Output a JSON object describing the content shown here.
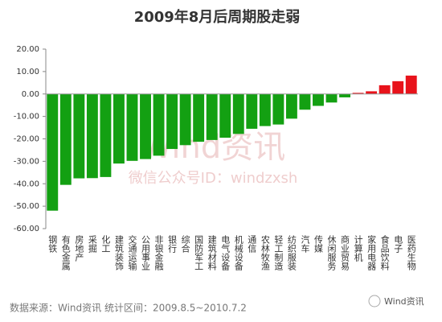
{
  "chart_data": {
    "type": "bar",
    "title": "2009年8月后周期股走弱",
    "categories": [
      "钢铁",
      "有色金属",
      "房地产",
      "采掘",
      "化工",
      "建筑装饰",
      "交通运输",
      "公用事业",
      "非银金融",
      "银行",
      "综合",
      "国防军工",
      "建筑材料",
      "电气设备",
      "机械设备",
      "通信",
      "农林牧渔",
      "轻工制造",
      "纺织服装",
      "汽车",
      "传媒",
      "休闲服务",
      "商业贸易",
      "计算机",
      "家用电器",
      "食品饮料",
      "电子",
      "医药生物"
    ],
    "values": [
      -52,
      -40.5,
      -37.6,
      -37.5,
      -37,
      -31,
      -29.8,
      -29,
      -27.5,
      -24.5,
      -22.8,
      -21.3,
      -20.5,
      -19.5,
      -17.8,
      -15.5,
      -14.3,
      -13.6,
      -11,
      -7,
      -5.3,
      -3.8,
      -1.5,
      0.5,
      1.2,
      3.9,
      5.7,
      8.2
    ],
    "negative_color": "#13a012",
    "positive_color": "#e8131b",
    "ylim": [
      -60,
      20
    ],
    "yticks": [
      {
        "value": -60,
        "label": "-60.00"
      },
      {
        "value": -50,
        "label": "-50.00"
      },
      {
        "value": -40,
        "label": "-40.00"
      },
      {
        "value": -30,
        "label": "-30.00"
      },
      {
        "value": -20,
        "label": "-20.00"
      },
      {
        "value": -10,
        "label": "-10.00"
      },
      {
        "value": 0,
        "label": "0.00"
      },
      {
        "value": 10,
        "label": "10.00"
      },
      {
        "value": 20,
        "label": "20.00"
      }
    ],
    "grid": false,
    "source": "数据来源：Wind资讯  统计区间：2009.8.5~2010.7.2",
    "watermark": "Wind资讯",
    "watermark_sub": "微信公众号ID：windzxsh",
    "badge": "Wind资讯"
  }
}
